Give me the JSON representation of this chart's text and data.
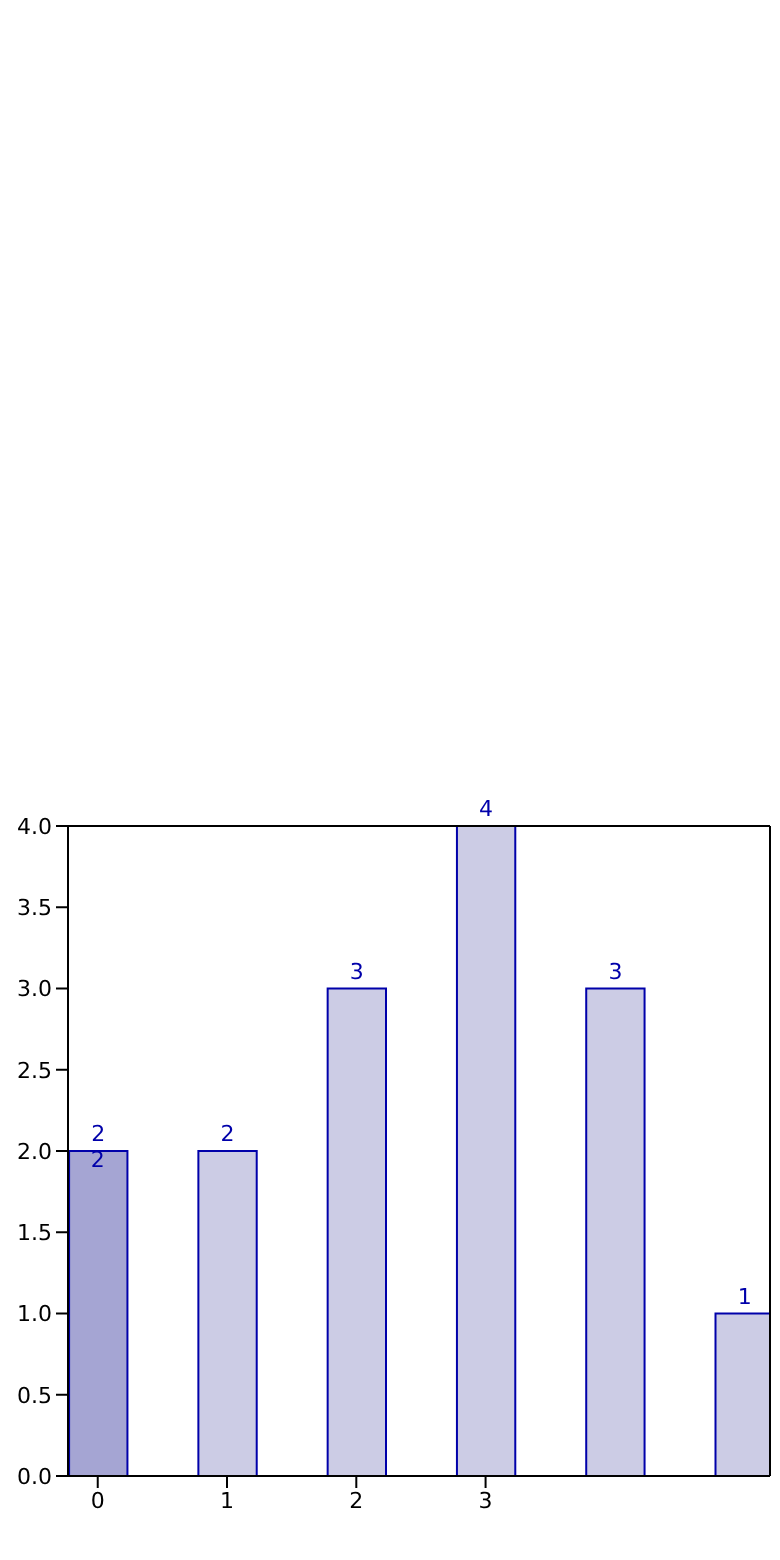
{
  "chart_data": {
    "type": "bar",
    "x": [
      0,
      1,
      2,
      3,
      4,
      5
    ],
    "values": [
      2,
      2,
      3,
      4,
      3,
      1
    ],
    "colors": [
      "#a5a5d3",
      "#ccccE5",
      "#ccccE5",
      "#ccccE5",
      "#ccccE5",
      "#ccccE5"
    ],
    "xlim": [
      -0.23,
      5.2
    ],
    "xticks": [
      0,
      1,
      2,
      3
    ],
    "ylim": [
      0,
      4
    ],
    "yticks": [
      {
        "value": 0,
        "label": "0.0"
      },
      {
        "value": 0.5,
        "label": "0.5"
      },
      {
        "value": 1,
        "label": "1.0"
      },
      {
        "value": 1.5,
        "label": "1.5"
      },
      {
        "value": 2,
        "label": "2.0"
      },
      {
        "value": 2.5,
        "label": "2.5"
      },
      {
        "value": 3,
        "label": "3.0"
      },
      {
        "value": 3.5,
        "label": "3.5"
      },
      {
        "value": 4,
        "label": "4.0"
      }
    ],
    "data_labels": true,
    "grid": false,
    "annotations": [
      {
        "text": "2",
        "x": 0,
        "y": 2
      }
    ]
  }
}
